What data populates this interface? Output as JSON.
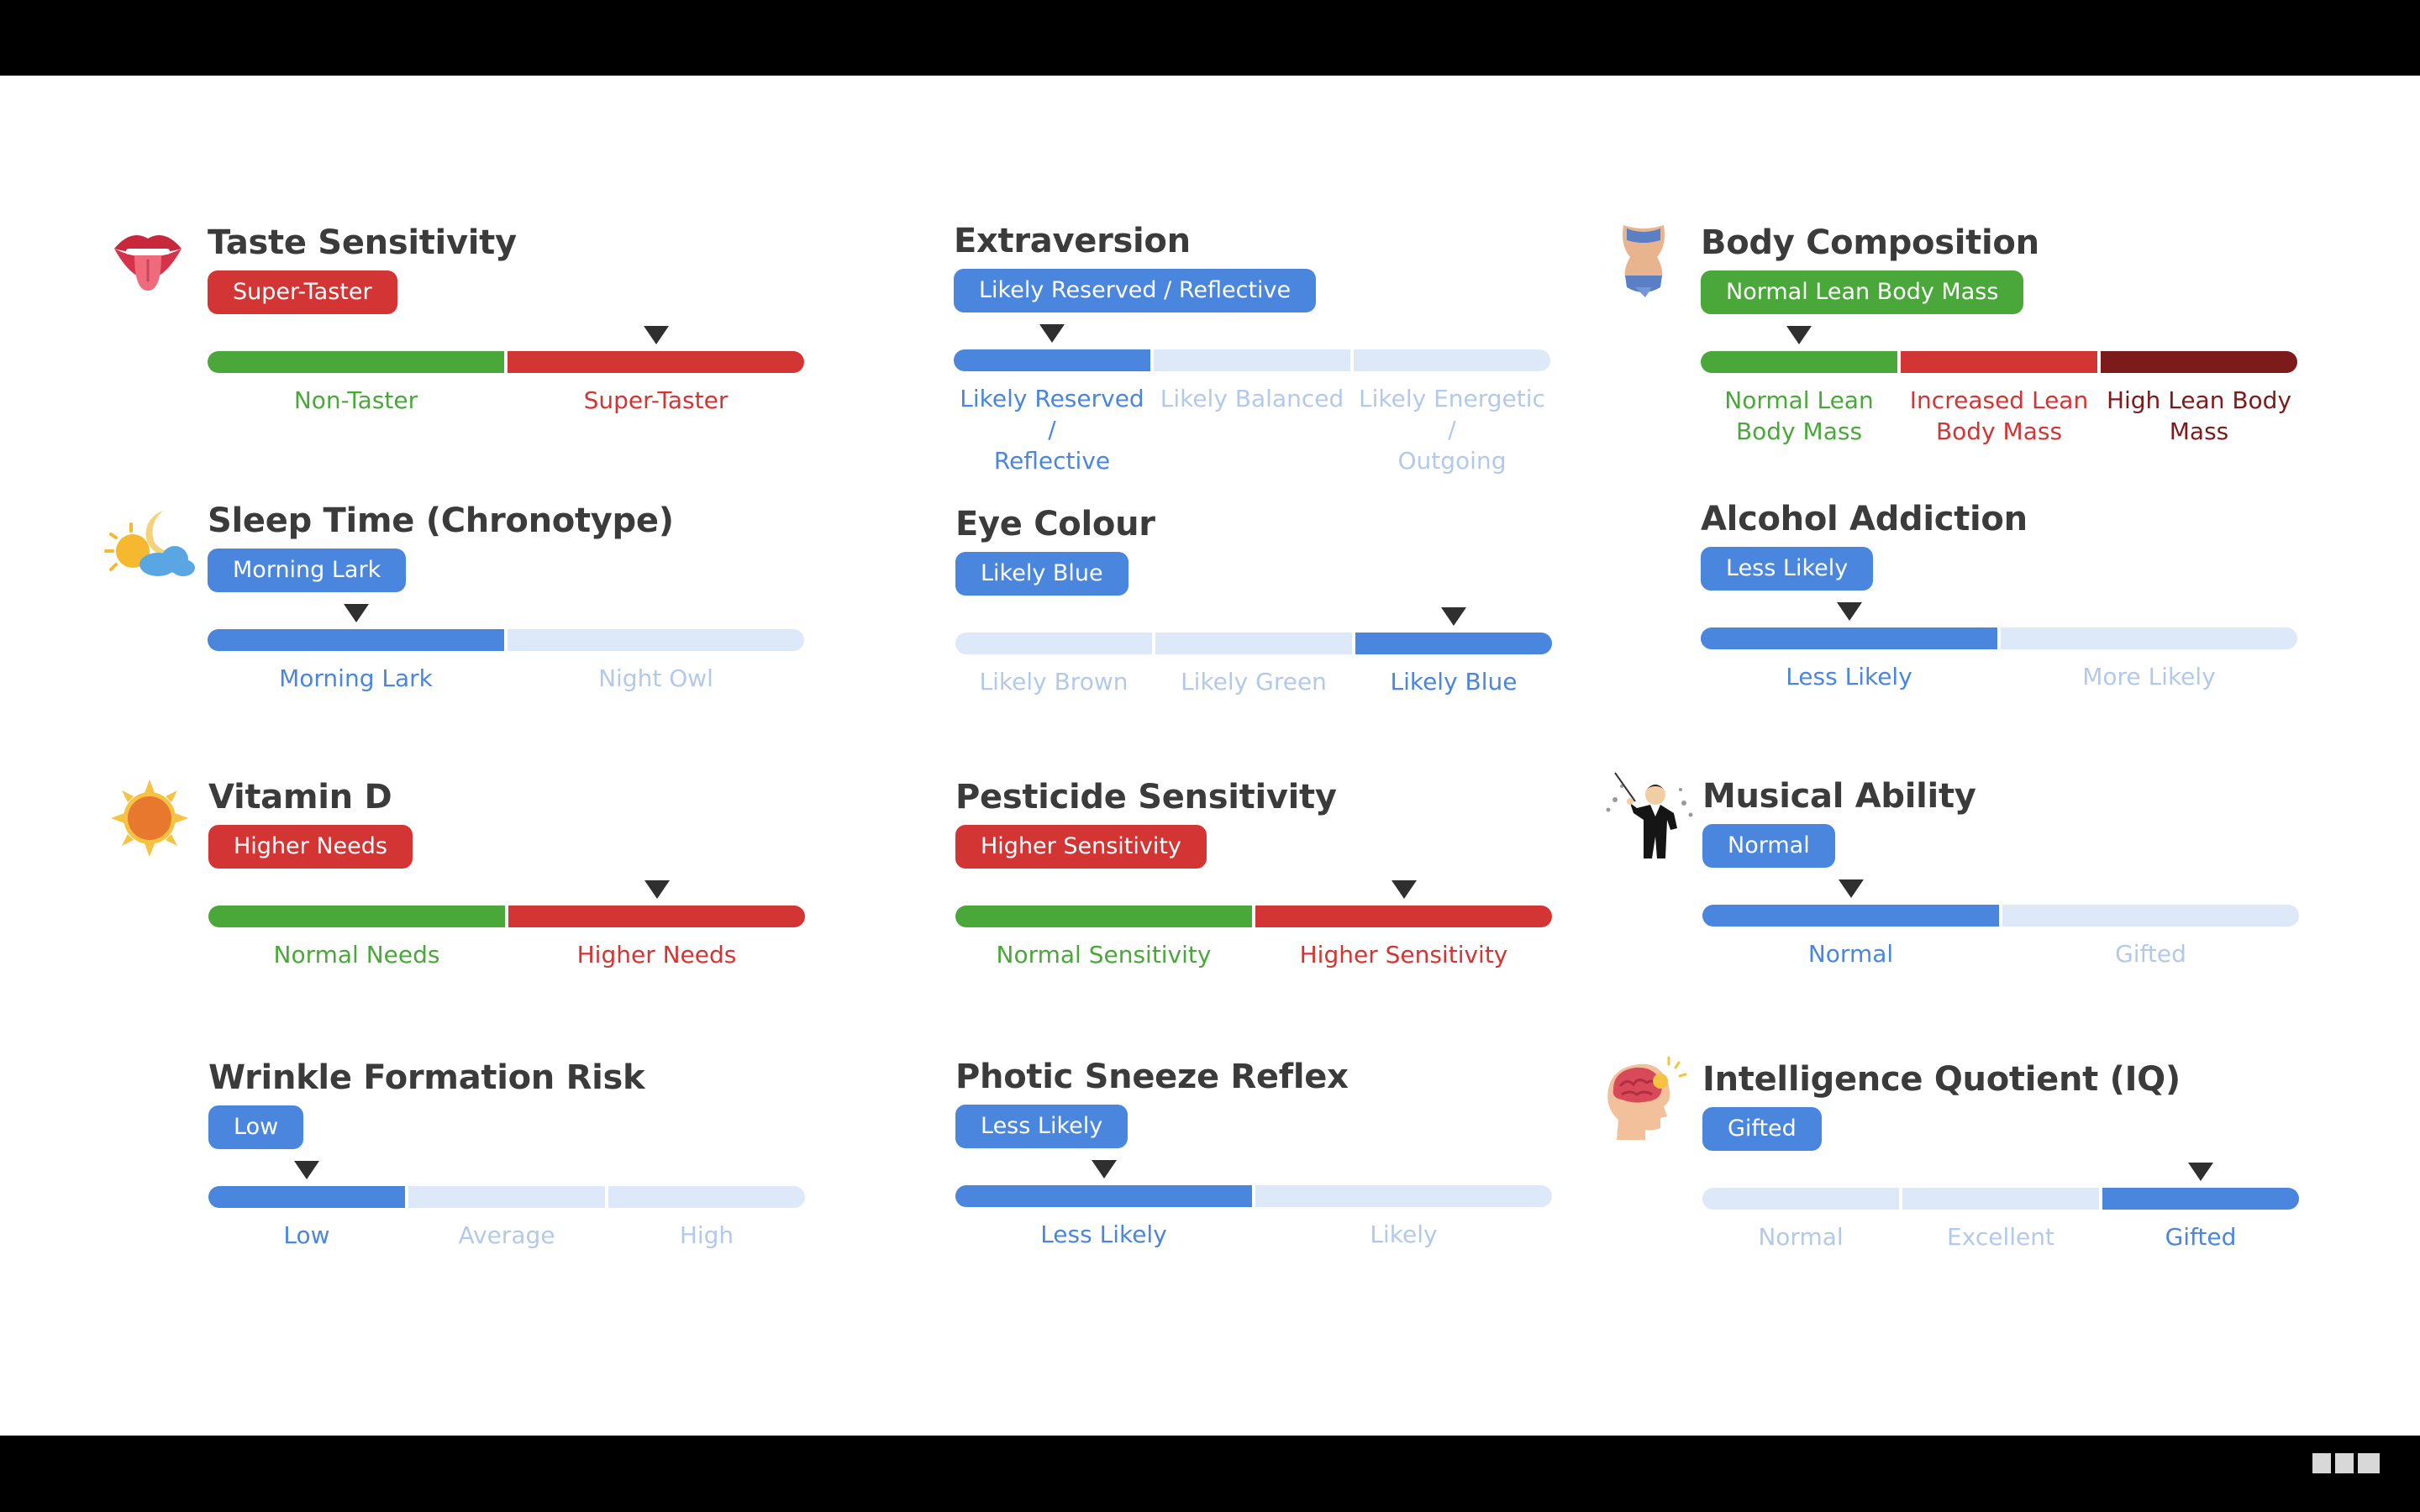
{
  "colors": {
    "blue": "#4a86dd",
    "blue_light": "#dde8f8",
    "blue_text": "#4a86dd",
    "blue_faded_text": "#b3c9ec",
    "green": "#4aa83a",
    "red": "#d33434",
    "dark_red": "#7d1a1a"
  },
  "traits": [
    {
      "id": "taste",
      "title": "Taste Sensitivity",
      "icon": "lips-tongue-icon",
      "badge": "Super-Taster",
      "badge_color": "red",
      "marker_segment": 1,
      "segments": [
        {
          "label": "Non-Taster",
          "bar": "green",
          "text": "green"
        },
        {
          "label": "Super-Taster",
          "bar": "red",
          "text": "red"
        }
      ]
    },
    {
      "id": "extraversion",
      "title": "Extraversion",
      "icon": "",
      "badge": "Likely Reserved / Reflective",
      "badge_color": "blue",
      "marker_segment": 0,
      "segments": [
        {
          "label": "Likely Reserved /\nReflective",
          "bar": "blue",
          "text": "blue"
        },
        {
          "label": "Likely Balanced",
          "bar": "blue_light",
          "text": "blue_faded"
        },
        {
          "label": "Likely Energetic /\nOutgoing",
          "bar": "blue_light",
          "text": "blue_faded"
        }
      ]
    },
    {
      "id": "body",
      "title": "Body Composition",
      "icon": "torso-icon",
      "badge": "Normal Lean Body Mass",
      "badge_color": "green",
      "marker_segment": 0,
      "segments": [
        {
          "label": "Normal Lean\nBody Mass",
          "bar": "green",
          "text": "green"
        },
        {
          "label": "Increased Lean\nBody Mass",
          "bar": "red",
          "text": "red"
        },
        {
          "label": "High Lean Body\nMass",
          "bar": "dark_red",
          "text": "dark_red"
        }
      ]
    },
    {
      "id": "sleep",
      "title": "Sleep Time (Chronotype)",
      "icon": "sun-moon-cloud-icon",
      "badge": "Morning Lark",
      "badge_color": "blue",
      "marker_segment": 0,
      "segments": [
        {
          "label": "Morning Lark",
          "bar": "blue",
          "text": "blue"
        },
        {
          "label": "Night Owl",
          "bar": "blue_light",
          "text": "blue_faded"
        }
      ]
    },
    {
      "id": "eye",
      "title": "Eye Colour",
      "icon": "",
      "badge": "Likely Blue",
      "badge_color": "blue",
      "marker_segment": 2,
      "segments": [
        {
          "label": "Likely Brown",
          "bar": "blue_light",
          "text": "blue_faded"
        },
        {
          "label": "Likely Green",
          "bar": "blue_light",
          "text": "blue_faded"
        },
        {
          "label": "Likely Blue",
          "bar": "blue",
          "text": "blue"
        }
      ]
    },
    {
      "id": "alcohol",
      "title": "Alcohol Addiction",
      "icon": "",
      "badge": "Less Likely",
      "badge_color": "blue",
      "marker_segment": 0,
      "segments": [
        {
          "label": "Less Likely",
          "bar": "blue",
          "text": "blue"
        },
        {
          "label": "More Likely",
          "bar": "blue_light",
          "text": "blue_faded"
        }
      ]
    },
    {
      "id": "vitamind",
      "title": "Vitamin D",
      "icon": "sun-icon",
      "badge": "Higher Needs",
      "badge_color": "red",
      "marker_segment": 1,
      "segments": [
        {
          "label": "Normal Needs",
          "bar": "green",
          "text": "green"
        },
        {
          "label": "Higher Needs",
          "bar": "red",
          "text": "red"
        }
      ]
    },
    {
      "id": "pesticide",
      "title": "Pesticide Sensitivity",
      "icon": "",
      "badge": "Higher Sensitivity",
      "badge_color": "red",
      "marker_segment": 1,
      "segments": [
        {
          "label": "Normal Sensitivity",
          "bar": "green",
          "text": "green"
        },
        {
          "label": "Higher Sensitivity",
          "bar": "red",
          "text": "red"
        }
      ]
    },
    {
      "id": "musical",
      "title": "Musical Ability",
      "icon": "conductor-icon",
      "badge": "Normal",
      "badge_color": "blue",
      "marker_segment": 0,
      "segments": [
        {
          "label": "Normal",
          "bar": "blue",
          "text": "blue"
        },
        {
          "label": "Gifted",
          "bar": "blue_light",
          "text": "blue_faded"
        }
      ]
    },
    {
      "id": "wrinkle",
      "title": "Wrinkle Formation Risk",
      "icon": "",
      "badge": "Low",
      "badge_color": "blue",
      "marker_segment": 0,
      "segments": [
        {
          "label": "Low",
          "bar": "blue",
          "text": "blue"
        },
        {
          "label": "Average",
          "bar": "blue_light",
          "text": "blue_faded"
        },
        {
          "label": "High",
          "bar": "blue_light",
          "text": "blue_faded"
        }
      ]
    },
    {
      "id": "sneeze",
      "title": "Photic Sneeze Reflex",
      "icon": "",
      "badge": "Less Likely",
      "badge_color": "blue",
      "marker_segment": 0,
      "segments": [
        {
          "label": "Less Likely",
          "bar": "blue",
          "text": "blue"
        },
        {
          "label": "Likely",
          "bar": "blue_light",
          "text": "blue_faded"
        }
      ]
    },
    {
      "id": "iq",
      "title": "Intelligence Quotient (IQ)",
      "icon": "brain-head-icon",
      "badge": "Gifted",
      "badge_color": "blue",
      "marker_segment": 2,
      "segments": [
        {
          "label": "Normal",
          "bar": "blue_light",
          "text": "blue_faded"
        },
        {
          "label": "Excellent",
          "bar": "blue_light",
          "text": "blue_faded"
        },
        {
          "label": "Gifted",
          "bar": "blue",
          "text": "blue"
        }
      ]
    }
  ]
}
